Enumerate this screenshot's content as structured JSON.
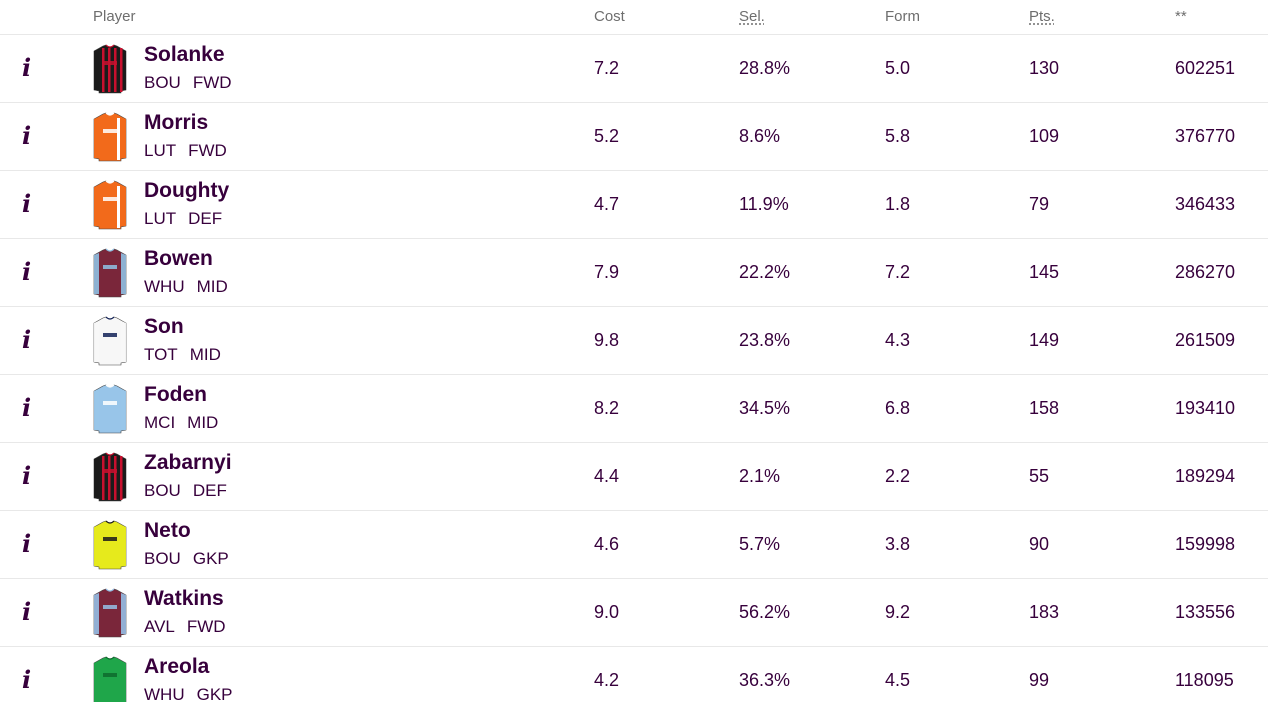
{
  "headers": {
    "player": "Player",
    "cost": "Cost",
    "sel": "Sel.",
    "form": "Form",
    "pts": "Pts.",
    "stat": "**"
  },
  "info_icon": "i",
  "rows": [
    {
      "name": "Solanke",
      "team": "BOU",
      "pos": "FWD",
      "cost": "7.2",
      "sel": "28.8%",
      "form": "5.0",
      "pts": "130",
      "stat": "602251",
      "shirt": {
        "base": "#1b1b1b",
        "accent": "#c8102e",
        "sleeve": "#1b1b1b",
        "pattern": "stripes"
      }
    },
    {
      "name": "Morris",
      "team": "LUT",
      "pos": "FWD",
      "cost": "5.2",
      "sel": "8.6%",
      "form": "5.8",
      "pts": "109",
      "stat": "376770",
      "shirt": {
        "base": "#f26a1b",
        "accent": "#ffffff",
        "sleeve": "#f26a1b",
        "pattern": "side"
      }
    },
    {
      "name": "Doughty",
      "team": "LUT",
      "pos": "DEF",
      "cost": "4.7",
      "sel": "11.9%",
      "form": "1.8",
      "pts": "79",
      "stat": "346433",
      "shirt": {
        "base": "#f26a1b",
        "accent": "#ffffff",
        "sleeve": "#f26a1b",
        "pattern": "side"
      }
    },
    {
      "name": "Bowen",
      "team": "WHU",
      "pos": "MID",
      "cost": "7.9",
      "sel": "22.2%",
      "form": "7.2",
      "pts": "145",
      "stat": "286270",
      "shirt": {
        "base": "#7a263a",
        "accent": "#8fc1e3",
        "sleeve": "#8fc1e3",
        "pattern": "plain"
      }
    },
    {
      "name": "Son",
      "team": "TOT",
      "pos": "MID",
      "cost": "9.8",
      "sel": "23.8%",
      "form": "4.3",
      "pts": "149",
      "stat": "261509",
      "shirt": {
        "base": "#f7f7f7",
        "accent": "#132257",
        "sleeve": "#f7f7f7",
        "pattern": "plain"
      }
    },
    {
      "name": "Foden",
      "team": "MCI",
      "pos": "MID",
      "cost": "8.2",
      "sel": "34.5%",
      "form": "6.8",
      "pts": "158",
      "stat": "193410",
      "shirt": {
        "base": "#98c5e9",
        "accent": "#ffffff",
        "sleeve": "#98c5e9",
        "pattern": "plain"
      }
    },
    {
      "name": "Zabarnyi",
      "team": "BOU",
      "pos": "DEF",
      "cost": "4.4",
      "sel": "2.1%",
      "form": "2.2",
      "pts": "55",
      "stat": "189294",
      "shirt": {
        "base": "#1b1b1b",
        "accent": "#c8102e",
        "sleeve": "#1b1b1b",
        "pattern": "stripes"
      }
    },
    {
      "name": "Neto",
      "team": "BOU",
      "pos": "GKP",
      "cost": "4.6",
      "sel": "5.7%",
      "form": "3.8",
      "pts": "90",
      "stat": "159998",
      "shirt": {
        "base": "#e6ea1c",
        "accent": "#1b1b1b",
        "sleeve": "#e6ea1c",
        "pattern": "plain"
      }
    },
    {
      "name": "Watkins",
      "team": "AVL",
      "pos": "FWD",
      "cost": "9.0",
      "sel": "56.2%",
      "form": "9.2",
      "pts": "183",
      "stat": "133556",
      "shirt": {
        "base": "#7a263a",
        "accent": "#95bfe5",
        "sleeve": "#95bfe5",
        "pattern": "plain"
      }
    },
    {
      "name": "Areola",
      "team": "WHU",
      "pos": "GKP",
      "cost": "4.2",
      "sel": "36.3%",
      "form": "4.5",
      "pts": "99",
      "stat": "118095",
      "shirt": {
        "base": "#1fa64a",
        "accent": "#0e6b2d",
        "sleeve": "#1fa64a",
        "pattern": "plain"
      }
    }
  ]
}
